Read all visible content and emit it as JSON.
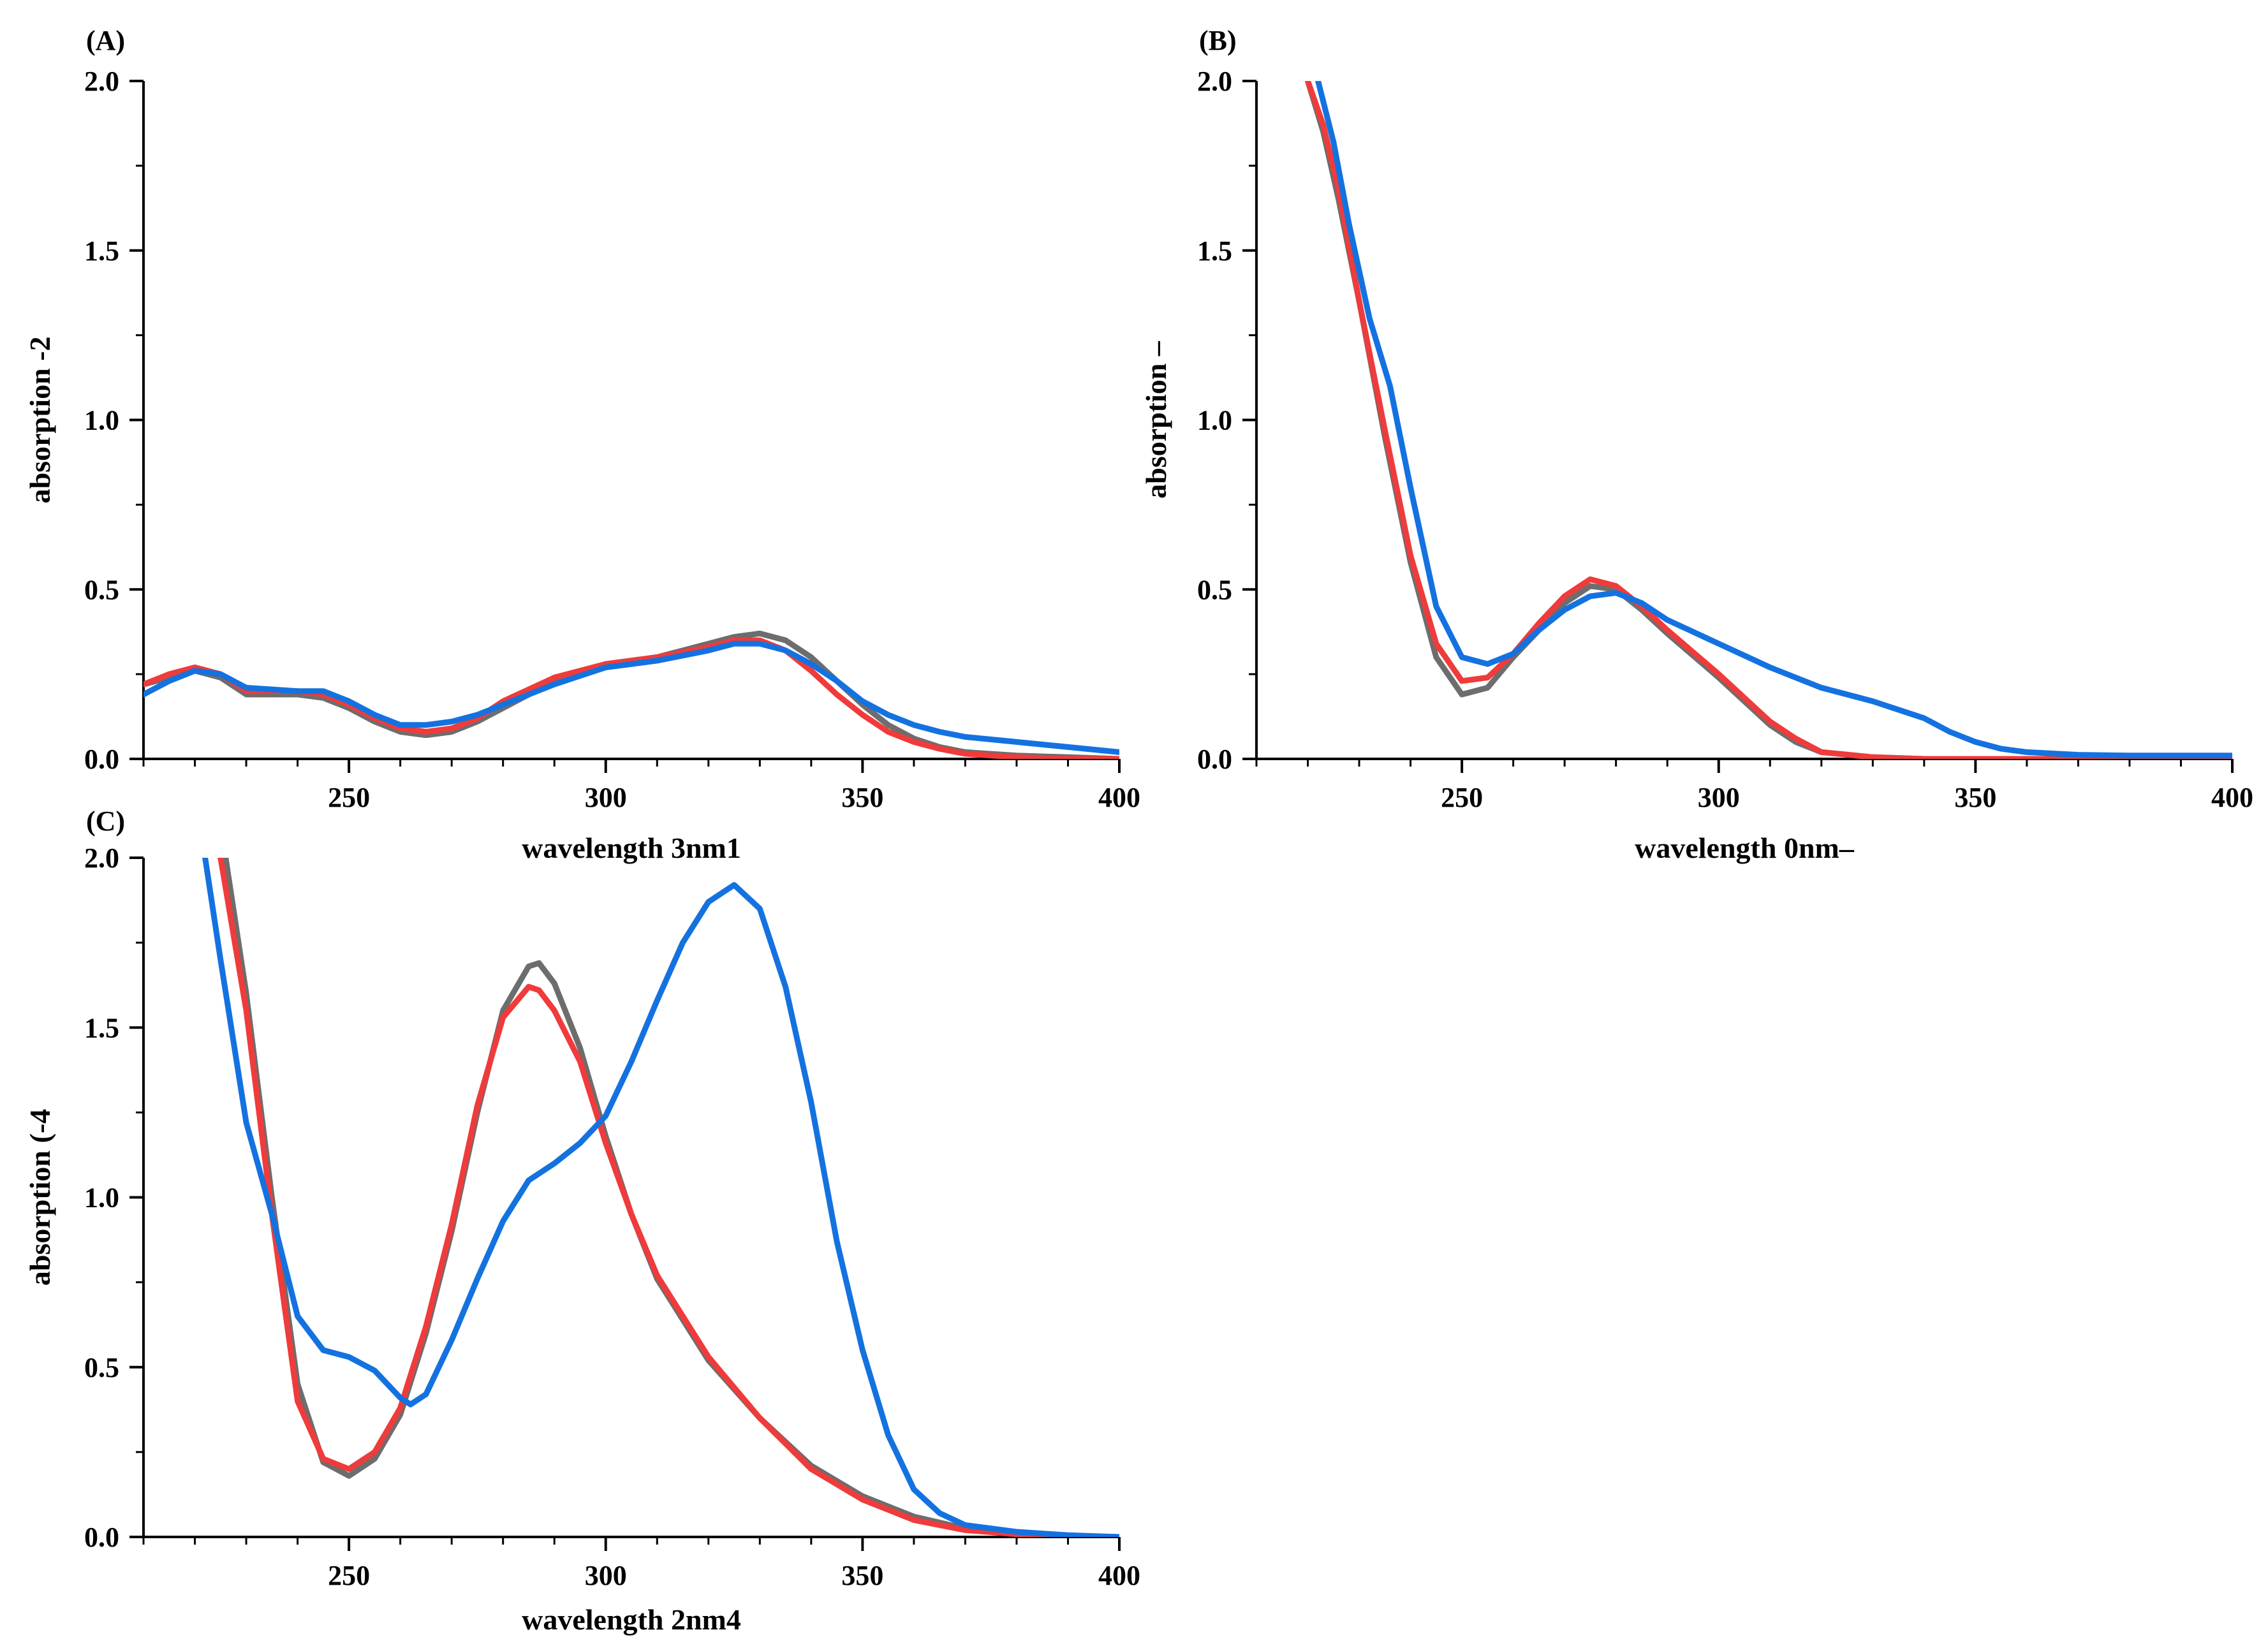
{
  "figure": {
    "line_colors": {
      "gray": "#6d6d6d",
      "red": "#ef3b3b",
      "blue": "#1472e0"
    }
  },
  "chart_data": [
    {
      "panel": "(A)",
      "type": "line",
      "title": "",
      "xlabel": "wavelength 3nm1",
      "ylabel": "absorption  -2",
      "xlim": [
        210,
        400
      ],
      "ylim": [
        0,
        2.0
      ],
      "xticks": [
        250,
        300,
        350,
        400
      ],
      "yticks": [
        0.0,
        0.5,
        1.0,
        1.5,
        2.0
      ],
      "xtick_labels": [
        "250",
        "300",
        "350",
        "400"
      ],
      "ytick_labels": [
        "0.0",
        "0.5",
        "1.0",
        "1.5",
        "2.0"
      ],
      "grid": false,
      "series": [
        {
          "name": "gray",
          "color": "#6d6d6d",
          "x": [
            210,
            215,
            220,
            225,
            230,
            240,
            245,
            250,
            255,
            260,
            265,
            270,
            275,
            280,
            290,
            300,
            310,
            320,
            325,
            330,
            335,
            340,
            345,
            350,
            355,
            360,
            365,
            370,
            380,
            390,
            400
          ],
          "y": [
            0.22,
            0.24,
            0.26,
            0.24,
            0.19,
            0.19,
            0.18,
            0.15,
            0.11,
            0.08,
            0.07,
            0.08,
            0.11,
            0.15,
            0.23,
            0.28,
            0.3,
            0.34,
            0.36,
            0.37,
            0.35,
            0.3,
            0.23,
            0.16,
            0.1,
            0.06,
            0.035,
            0.02,
            0.01,
            0.005,
            0.0
          ]
        },
        {
          "name": "red",
          "color": "#ef3b3b",
          "x": [
            210,
            215,
            220,
            225,
            230,
            240,
            245,
            250,
            255,
            260,
            265,
            270,
            275,
            280,
            290,
            300,
            310,
            320,
            325,
            330,
            335,
            340,
            345,
            350,
            355,
            360,
            365,
            370,
            380,
            390,
            400
          ],
          "y": [
            0.22,
            0.25,
            0.27,
            0.25,
            0.2,
            0.2,
            0.19,
            0.16,
            0.12,
            0.09,
            0.08,
            0.09,
            0.12,
            0.17,
            0.24,
            0.28,
            0.3,
            0.33,
            0.35,
            0.35,
            0.32,
            0.26,
            0.19,
            0.13,
            0.08,
            0.05,
            0.03,
            0.015,
            0.005,
            0.0,
            0.0
          ]
        },
        {
          "name": "blue",
          "color": "#1472e0",
          "x": [
            210,
            215,
            220,
            225,
            230,
            240,
            245,
            250,
            255,
            260,
            265,
            270,
            275,
            280,
            290,
            300,
            310,
            320,
            325,
            330,
            335,
            340,
            345,
            350,
            355,
            360,
            365,
            370,
            380,
            390,
            400
          ],
          "y": [
            0.19,
            0.23,
            0.26,
            0.25,
            0.21,
            0.2,
            0.2,
            0.17,
            0.13,
            0.1,
            0.1,
            0.11,
            0.13,
            0.16,
            0.22,
            0.27,
            0.29,
            0.32,
            0.34,
            0.34,
            0.32,
            0.28,
            0.23,
            0.17,
            0.13,
            0.1,
            0.08,
            0.065,
            0.05,
            0.035,
            0.02
          ]
        }
      ]
    },
    {
      "panel": "(B)",
      "type": "line",
      "title": "",
      "xlabel": "wavelength 0nm–",
      "ylabel": "absorption  –",
      "xlim": [
        210,
        400
      ],
      "ylim": [
        0,
        2.0
      ],
      "xticks": [
        250,
        300,
        350,
        400
      ],
      "yticks": [
        0.0,
        0.5,
        1.0,
        1.5,
        2.0
      ],
      "xtick_labels": [
        "250",
        "300",
        "350",
        "400"
      ],
      "ytick_labels": [
        "0.0",
        "0.5",
        "1.0",
        "1.5",
        "2.0"
      ],
      "grid": false,
      "series": [
        {
          "name": "gray",
          "color": "#6d6d6d",
          "x": [
            220,
            223,
            226,
            230,
            235,
            240,
            245,
            250,
            255,
            260,
            265,
            270,
            275,
            280,
            285,
            290,
            300,
            310,
            315,
            320,
            330,
            340,
            350,
            360,
            380,
            400
          ],
          "y": [
            2.0,
            1.85,
            1.65,
            1.35,
            0.95,
            0.58,
            0.3,
            0.19,
            0.21,
            0.3,
            0.38,
            0.46,
            0.51,
            0.5,
            0.44,
            0.37,
            0.24,
            0.1,
            0.05,
            0.02,
            0.005,
            0.0,
            0.0,
            0.0,
            0.0,
            0.0
          ]
        },
        {
          "name": "red",
          "color": "#ef3b3b",
          "x": [
            220,
            223,
            226,
            230,
            235,
            240,
            245,
            250,
            255,
            260,
            265,
            270,
            275,
            280,
            285,
            290,
            300,
            310,
            315,
            320,
            330,
            340,
            350,
            360,
            380,
            400
          ],
          "y": [
            2.0,
            1.87,
            1.68,
            1.35,
            0.97,
            0.6,
            0.34,
            0.23,
            0.24,
            0.31,
            0.4,
            0.48,
            0.53,
            0.51,
            0.45,
            0.38,
            0.25,
            0.11,
            0.06,
            0.02,
            0.005,
            0.0,
            0.0,
            0.0,
            0.0,
            0.0
          ]
        },
        {
          "name": "blue",
          "color": "#1472e0",
          "x": [
            222,
            225,
            228,
            232,
            236,
            240,
            245,
            250,
            255,
            260,
            265,
            270,
            275,
            280,
            285,
            290,
            300,
            310,
            320,
            330,
            340,
            345,
            350,
            355,
            360,
            370,
            380,
            400
          ],
          "y": [
            2.0,
            1.82,
            1.58,
            1.3,
            1.1,
            0.8,
            0.45,
            0.3,
            0.28,
            0.31,
            0.38,
            0.44,
            0.48,
            0.49,
            0.46,
            0.41,
            0.34,
            0.27,
            0.21,
            0.17,
            0.12,
            0.08,
            0.05,
            0.03,
            0.02,
            0.012,
            0.01,
            0.01
          ]
        }
      ]
    },
    {
      "panel": "(C)",
      "type": "line",
      "title": "",
      "xlabel": "wavelength 2nm4",
      "ylabel": "absorption (-4",
      "xlim": [
        210,
        400
      ],
      "ylim": [
        0,
        2.0
      ],
      "xticks": [
        250,
        300,
        350,
        400
      ],
      "yticks": [
        0.0,
        0.5,
        1.0,
        1.5,
        2.0
      ],
      "xtick_labels": [
        "250",
        "300",
        "350",
        "400"
      ],
      "ytick_labels": [
        "0.0",
        "0.5",
        "1.0",
        "1.5",
        "2.0"
      ],
      "grid": false,
      "series": [
        {
          "name": "gray",
          "color": "#6d6d6d",
          "x": [
            226,
            230,
            235,
            240,
            245,
            250,
            255,
            260,
            265,
            270,
            275,
            280,
            285,
            287,
            290,
            295,
            300,
            305,
            310,
            320,
            330,
            340,
            350,
            360,
            370,
            380,
            390,
            400
          ],
          "y": [
            2.0,
            1.6,
            1.0,
            0.45,
            0.22,
            0.18,
            0.23,
            0.36,
            0.6,
            0.9,
            1.25,
            1.55,
            1.68,
            1.69,
            1.63,
            1.44,
            1.18,
            0.95,
            0.76,
            0.52,
            0.35,
            0.21,
            0.12,
            0.06,
            0.025,
            0.01,
            0.003,
            0.0
          ]
        },
        {
          "name": "red",
          "color": "#ef3b3b",
          "x": [
            225,
            230,
            235,
            240,
            245,
            250,
            255,
            260,
            265,
            270,
            275,
            280,
            285,
            287,
            290,
            295,
            300,
            305,
            310,
            320,
            330,
            340,
            350,
            360,
            370,
            380,
            390,
            400
          ],
          "y": [
            2.0,
            1.55,
            0.95,
            0.4,
            0.23,
            0.2,
            0.25,
            0.38,
            0.62,
            0.92,
            1.27,
            1.53,
            1.62,
            1.61,
            1.55,
            1.4,
            1.16,
            0.95,
            0.77,
            0.53,
            0.35,
            0.2,
            0.11,
            0.05,
            0.02,
            0.008,
            0.002,
            0.0
          ]
        },
        {
          "name": "blue",
          "color": "#1472e0",
          "x": [
            222,
            225,
            230,
            235,
            240,
            245,
            250,
            255,
            260,
            262,
            265,
            270,
            275,
            280,
            285,
            290,
            295,
            300,
            305,
            310,
            315,
            320,
            325,
            330,
            335,
            340,
            345,
            350,
            355,
            360,
            365,
            370,
            380,
            390,
            400
          ],
          "y": [
            2.0,
            1.7,
            1.22,
            0.95,
            0.65,
            0.55,
            0.53,
            0.49,
            0.41,
            0.39,
            0.42,
            0.58,
            0.76,
            0.93,
            1.05,
            1.1,
            1.16,
            1.24,
            1.4,
            1.58,
            1.75,
            1.87,
            1.92,
            1.85,
            1.62,
            1.28,
            0.87,
            0.55,
            0.3,
            0.14,
            0.07,
            0.035,
            0.015,
            0.005,
            0.0
          ]
        }
      ]
    }
  ]
}
